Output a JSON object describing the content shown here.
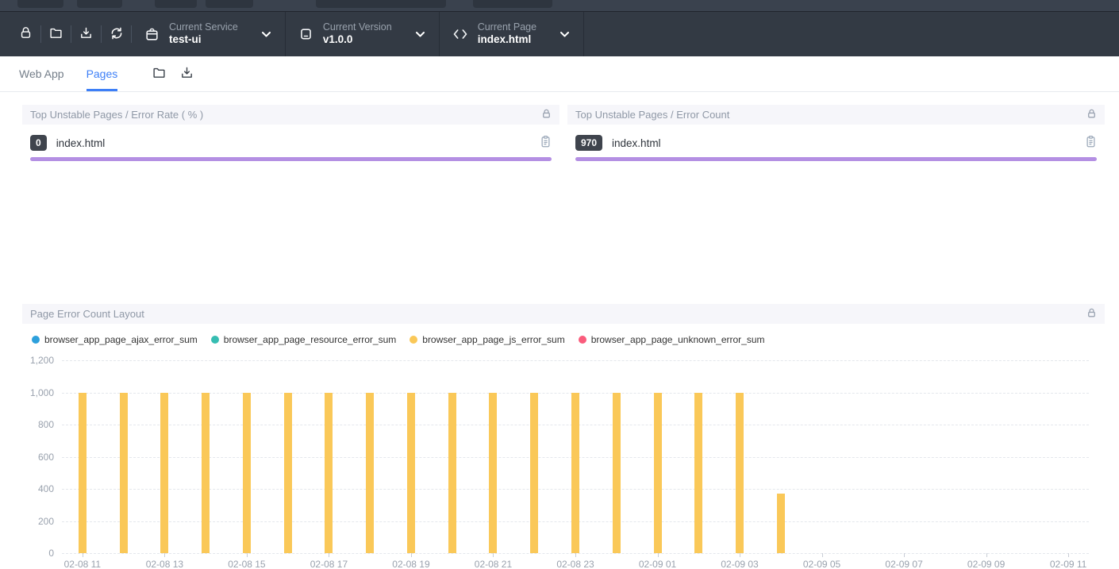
{
  "colors": {
    "accent_blue": "#3d7ff7",
    "purple_bar": "#b48fe3",
    "toolbar_bg": "#333a44",
    "strip_bg": "#3a424e",
    "panel_header_bg": "#f6f6fa",
    "badge_bg": "#3f444d",
    "axis_text": "#99a1ad",
    "grid_line": "#e4e7ec"
  },
  "toolbar": {
    "icon_buttons": [
      "lock",
      "folder",
      "download",
      "refresh"
    ],
    "selectors": [
      {
        "icon": "service-bag-icon",
        "label": "Current Service",
        "value": "test-ui"
      },
      {
        "icon": "version-device-icon",
        "label": "Current Version",
        "value": "v1.0.0"
      },
      {
        "icon": "code-icon",
        "label": "Current Page",
        "value": "index.html"
      }
    ]
  },
  "tabs": {
    "items": [
      {
        "label": "Web App",
        "active": false
      },
      {
        "label": "Pages",
        "active": true
      }
    ]
  },
  "panels": [
    {
      "title": "Top Unstable Pages / Error Rate ( % )",
      "rows": [
        {
          "value": "0",
          "label": "index.html",
          "bar_percent": 100
        }
      ]
    },
    {
      "title": "Top Unstable Pages / Error Count",
      "rows": [
        {
          "value": "970",
          "label": "index.html",
          "bar_percent": 100
        }
      ]
    }
  ],
  "chart_panel": {
    "title": "Page Error Count Layout"
  },
  "chart_data": {
    "type": "bar",
    "title": "Page Error Count Layout",
    "categories": [
      "02-08 11",
      "02-08 12",
      "02-08 13",
      "02-08 14",
      "02-08 15",
      "02-08 16",
      "02-08 17",
      "02-08 18",
      "02-08 19",
      "02-08 20",
      "02-08 21",
      "02-08 22",
      "02-08 23",
      "02-09 00",
      "02-09 01",
      "02-09 02",
      "02-09 03",
      "02-09 04",
      "02-09 05",
      "02-09 06",
      "02-09 07",
      "02-09 08",
      "02-09 09",
      "02-09 10",
      "02-09 11"
    ],
    "x_label_interval": 2,
    "series": [
      {
        "name": "browser_app_page_ajax_error_sum",
        "color": "#2da0dc",
        "values": [
          0,
          0,
          0,
          0,
          0,
          0,
          0,
          0,
          0,
          0,
          0,
          0,
          0,
          0,
          0,
          0,
          0,
          0,
          0,
          0,
          0,
          0,
          0,
          0,
          0
        ]
      },
      {
        "name": "browser_app_page_resource_error_sum",
        "color": "#36bdb2",
        "values": [
          0,
          0,
          0,
          0,
          0,
          0,
          0,
          0,
          0,
          0,
          0,
          0,
          0,
          0,
          0,
          0,
          0,
          0,
          0,
          0,
          0,
          0,
          0,
          0,
          0
        ]
      },
      {
        "name": "browser_app_page_js_error_sum",
        "color": "#fac858",
        "values": [
          1000,
          1000,
          1000,
          1000,
          1000,
          1000,
          1000,
          1000,
          1000,
          1000,
          1000,
          1000,
          1000,
          1000,
          1000,
          1000,
          1000,
          370,
          0,
          0,
          0,
          0,
          0,
          0,
          0
        ]
      },
      {
        "name": "browser_app_page_unknown_error_sum",
        "color": "#fa5c7c",
        "values": [
          0,
          0,
          0,
          0,
          0,
          0,
          0,
          0,
          0,
          0,
          0,
          0,
          0,
          0,
          0,
          0,
          0,
          0,
          0,
          0,
          0,
          0,
          0,
          0,
          0
        ]
      }
    ],
    "ylim": [
      0,
      1200
    ],
    "ytick_values": [
      0,
      200,
      400,
      600,
      800,
      1000,
      1200
    ],
    "ytick_labels": [
      "0",
      "200",
      "400",
      "600",
      "800",
      "1,000",
      "1,200"
    ],
    "grid": "dashed-horizontal",
    "legend_position": "top-left"
  }
}
